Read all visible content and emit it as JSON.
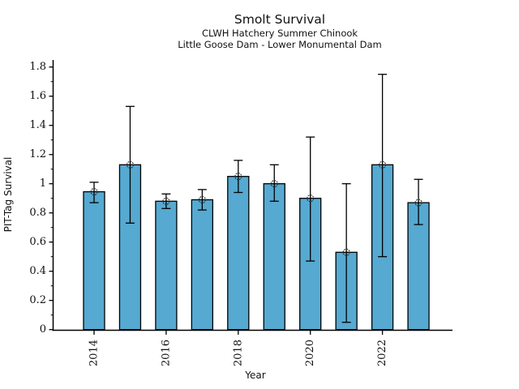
{
  "window": {
    "title": "Smolt Survival"
  },
  "chart_data": {
    "type": "bar",
    "title": "Smolt Survival",
    "subtitle1": "CLWH Hatchery Summer Chinook",
    "subtitle2": "Little Goose Dam - Lower Monumental Dam",
    "xlabel": "Year",
    "ylabel": "PIT-Tag Survival",
    "categories": [
      "2014",
      "2015",
      "2016",
      "2017",
      "2018",
      "2019",
      "2020",
      "2021",
      "2022",
      "2023"
    ],
    "values": [
      0.945,
      1.13,
      0.88,
      0.89,
      1.05,
      1.0,
      0.9,
      0.53,
      1.13,
      0.87
    ],
    "error_low": [
      0.87,
      0.73,
      0.83,
      0.82,
      0.94,
      0.88,
      0.47,
      0.05,
      0.5,
      0.72
    ],
    "error_high": [
      1.01,
      1.53,
      0.93,
      0.96,
      1.16,
      1.13,
      1.32,
      1.0,
      1.75,
      1.03
    ],
    "x_tick_indices": [
      0,
      2,
      4,
      6,
      8
    ],
    "x_tick_labels": [
      "2014",
      "2016",
      "2018",
      "2020",
      "2022"
    ],
    "y_tick_values": [
      0,
      0.2,
      0.4,
      0.6,
      0.8,
      1.0,
      1.2,
      1.4,
      1.6,
      1.8
    ],
    "y_tick_labels": [
      "0",
      "0.2",
      "0.4",
      "0.6",
      "0.8",
      "1",
      "1.2",
      "1.4",
      "1.6",
      "1.8"
    ],
    "y_minor_tick_values": [
      0.1,
      0.3,
      0.5,
      0.7,
      0.9,
      1.1,
      1.3,
      1.5,
      1.7
    ],
    "ylim": [
      0,
      1.85
    ],
    "grid": false,
    "legend": null,
    "bar_color": "#56A9D1",
    "bar_edge_color": "#000000",
    "error_bar_color": "#000000",
    "marker": "open-circle",
    "marker_color": "#2b2b2b",
    "axis_color": "#000000"
  }
}
